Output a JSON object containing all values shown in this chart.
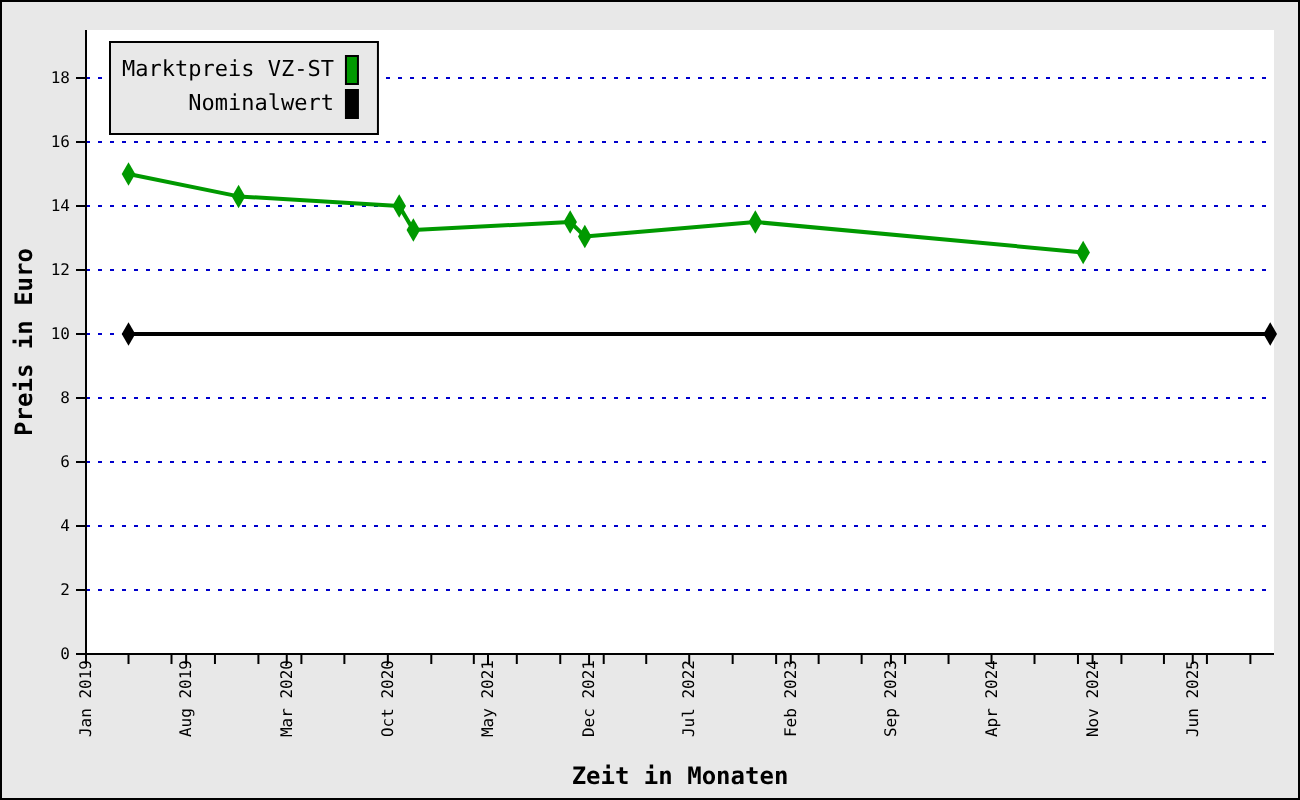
{
  "chart_data": {
    "type": "line",
    "xlabel": "Zeit in Monaten",
    "ylabel": "Preis in Euro",
    "series": [
      {
        "name": "Marktpreis VZ-ST",
        "color": "#009900",
        "x": [
          "2019-04-01",
          "2019-11-20",
          "2020-10-25",
          "2020-11-24",
          "2021-10-22",
          "2021-11-22",
          "2022-11-18",
          "2024-10-12"
        ],
        "values": [
          15.0,
          14.3,
          14.0,
          13.25,
          13.5,
          13.05,
          13.5,
          12.55
        ]
      },
      {
        "name": "Nominalwert",
        "color": "#000000",
        "x": [
          "2019-04-01",
          "2025-11-12"
        ],
        "values": [
          10,
          10
        ]
      }
    ],
    "marker": "diamond",
    "line_style": "solid",
    "grid": "y",
    "legend": "top left",
    "xlim": [
      "2019-01-01",
      "2025-11-20"
    ],
    "xticks": [
      {
        "value": "2019-01-01",
        "label": "Jan 2019"
      },
      {
        "value": "2019-04-01",
        "label": null
      },
      {
        "value": "2019-07-01",
        "label": null
      },
      {
        "value": "2019-08-01",
        "label": "Aug 2019"
      },
      {
        "value": "2019-10-01",
        "label": null
      },
      {
        "value": "2020-01-01",
        "label": null
      },
      {
        "value": "2020-03-01",
        "label": "Mar 2020"
      },
      {
        "value": "2020-04-01",
        "label": null
      },
      {
        "value": "2020-07-01",
        "label": null
      },
      {
        "value": "2020-10-01",
        "label": "Oct 2020"
      },
      {
        "value": "2021-01-01",
        "label": null
      },
      {
        "value": "2021-04-01",
        "label": null
      },
      {
        "value": "2021-05-01",
        "label": "May 2021"
      },
      {
        "value": "2021-07-01",
        "label": null
      },
      {
        "value": "2021-10-01",
        "label": null
      },
      {
        "value": "2021-12-01",
        "label": "Dec 2021"
      },
      {
        "value": "2022-01-01",
        "label": null
      },
      {
        "value": "2022-04-01",
        "label": null
      },
      {
        "value": "2022-07-01",
        "label": "Jul 2022"
      },
      {
        "value": "2022-10-01",
        "label": null
      },
      {
        "value": "2023-01-01",
        "label": null
      },
      {
        "value": "2023-02-01",
        "label": "Feb 2023"
      },
      {
        "value": "2023-04-01",
        "label": null
      },
      {
        "value": "2023-07-01",
        "label": null
      },
      {
        "value": "2023-09-01",
        "label": "Sep 2023"
      },
      {
        "value": "2023-10-01",
        "label": null
      },
      {
        "value": "2024-01-01",
        "label": null
      },
      {
        "value": "2024-04-01",
        "label": "Apr 2024"
      },
      {
        "value": "2024-07-01",
        "label": null
      },
      {
        "value": "2024-10-01",
        "label": null
      },
      {
        "value": "2024-11-01",
        "label": "Nov 2024"
      },
      {
        "value": "2025-01-01",
        "label": null
      },
      {
        "value": "2025-04-01",
        "label": null
      },
      {
        "value": "2025-06-01",
        "label": "Jun 2025"
      },
      {
        "value": "2025-07-01",
        "label": null
      },
      {
        "value": "2025-10-01",
        "label": null
      }
    ],
    "ylim": [
      0,
      19.5
    ],
    "yticks": [
      0,
      2,
      4,
      6,
      8,
      10,
      12,
      14,
      16,
      18
    ]
  }
}
